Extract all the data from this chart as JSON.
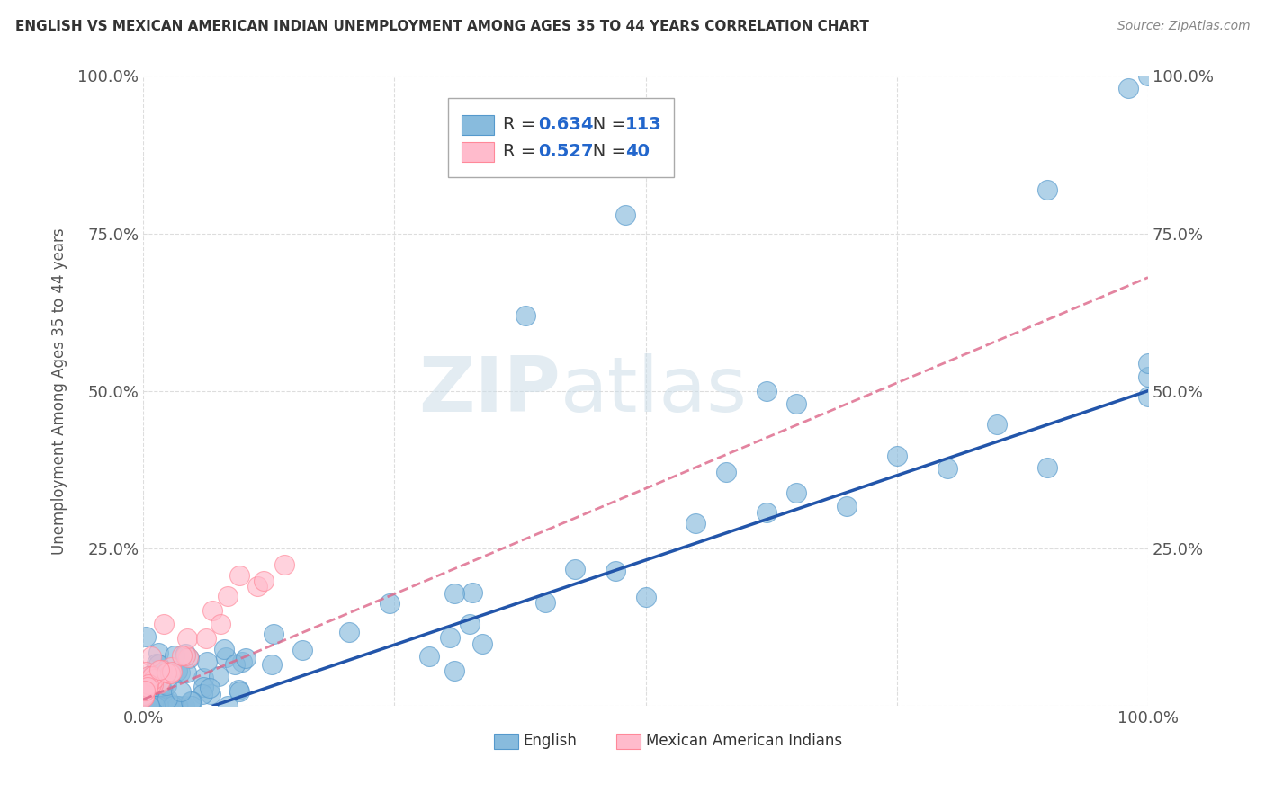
{
  "title": "ENGLISH VS MEXICAN AMERICAN INDIAN UNEMPLOYMENT AMONG AGES 35 TO 44 YEARS CORRELATION CHART",
  "source": "Source: ZipAtlas.com",
  "ylabel": "Unemployment Among Ages 35 to 44 years",
  "watermark_bold": "ZIP",
  "watermark_light": "atlas",
  "xlim": [
    0,
    1
  ],
  "ylim": [
    0,
    1
  ],
  "xtick_vals": [
    0.0,
    0.25,
    0.5,
    0.75,
    1.0
  ],
  "ytick_vals": [
    0.0,
    0.25,
    0.5,
    0.75,
    1.0
  ],
  "xticklabels_left": "0.0%",
  "xticklabels_right": "100.0%",
  "yticklabels": [
    "",
    "25.0%",
    "50.0%",
    "75.0%",
    "100.0%"
  ],
  "english_color": "#88BBDD",
  "english_edge_color": "#5599CC",
  "mexican_color": "#FFBBCC",
  "mexican_edge_color": "#FF8899",
  "trendline_english_color": "#2255AA",
  "trendline_mexican_color": "#DD6688",
  "legend_r_color": "#2266CC",
  "english_R": 0.634,
  "english_N": 113,
  "mexican_R": 0.527,
  "mexican_N": 40,
  "grid_color": "#DDDDDD",
  "background_color": "#FFFFFF",
  "title_color": "#333333",
  "source_color": "#888888",
  "tick_color": "#555555",
  "legend_box_color": "#AAAAAA",
  "eng_trend_x0": 0.07,
  "eng_trend_x1": 1.0,
  "eng_trend_y0": 0.0,
  "eng_trend_y1": 0.5,
  "mex_trend_x0": 0.0,
  "mex_trend_x1": 1.0,
  "mex_trend_y0": 0.01,
  "mex_trend_y1": 0.68
}
